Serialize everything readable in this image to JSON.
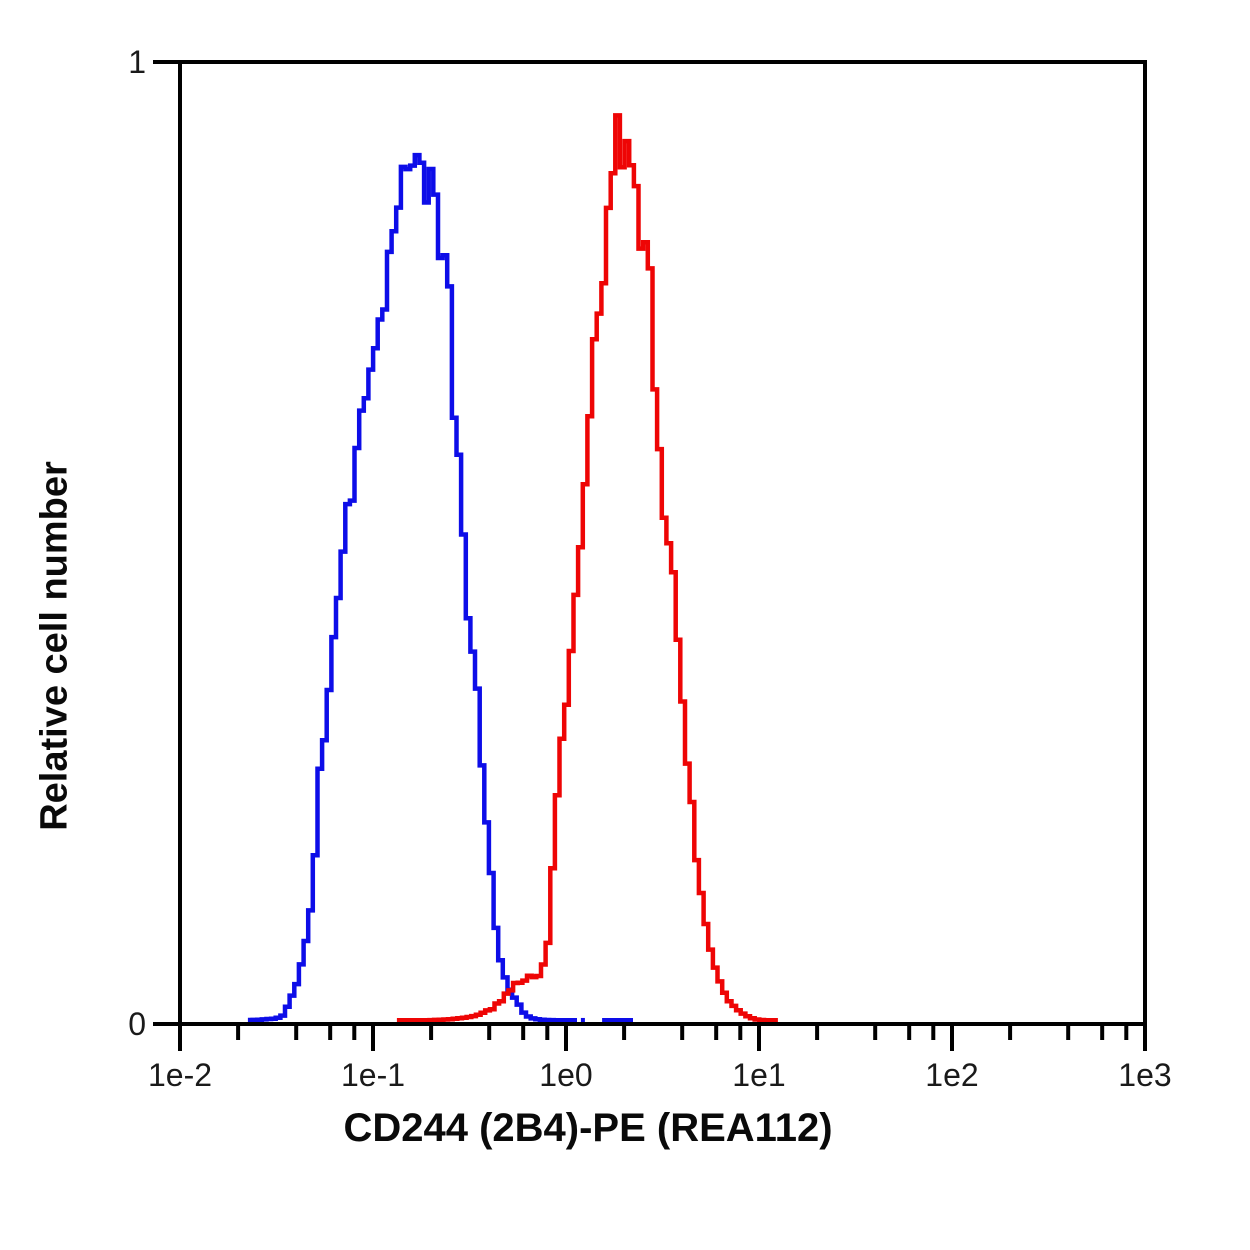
{
  "figure": {
    "background": "#ffffff",
    "x_title": "CD244 (2B4)-PE (REA112)",
    "y_title": "Relative cell number",
    "axis_color": "#000000",
    "tick_label_color": "#1a1a1a"
  },
  "chart_data": {
    "type": "line",
    "subtype": "flow-cytometry-step-histogram-overlay",
    "title": "",
    "xlabel": "CD244 (2B4)-PE (REA112)",
    "ylabel": "Relative cell number",
    "x_axis": {
      "scale": "log10",
      "range_log10": [
        -2,
        3
      ],
      "major_ticks": [
        {
          "log10": -2,
          "label": "1e-2"
        },
        {
          "log10": -1,
          "label": "1e-1"
        },
        {
          "log10": 0,
          "label": "1e0"
        },
        {
          "log10": 1,
          "label": "1e1"
        },
        {
          "log10": 2,
          "label": "1e2"
        },
        {
          "log10": 3,
          "label": "1e3"
        }
      ],
      "minor_tick_multiples": [
        2,
        4,
        6,
        8
      ]
    },
    "y_axis": {
      "range": [
        0,
        1
      ],
      "ticks": [
        {
          "value": 0,
          "label": "0"
        },
        {
          "value": 1,
          "label": "1"
        }
      ]
    },
    "grid": false,
    "legend": false,
    "bin_width_decades": 0.024,
    "series": [
      {
        "name": "blue-control-histogram",
        "color": "#0d0de8",
        "peak_x": 0.165,
        "peak_value": 0.9,
        "segments_log10_value": [
          [
            [
              -1.648,
              0.004
            ],
            [
              -1.55,
              0.005
            ],
            [
              -1.466,
              0.009
            ],
            [
              -1.43,
              0.022
            ],
            [
              -1.378,
              0.057
            ],
            [
              -1.345,
              0.09
            ],
            [
              -1.316,
              0.127
            ],
            [
              -1.285,
              0.231
            ],
            [
              -1.238,
              0.335
            ],
            [
              -1.171,
              0.46
            ],
            [
              -1.104,
              0.565
            ],
            [
              -1.016,
              0.669
            ],
            [
              -0.938,
              0.752
            ],
            [
              -0.886,
              0.835
            ],
            [
              -0.845,
              0.877
            ],
            [
              -0.785,
              0.9
            ],
            [
              -0.73,
              0.885
            ],
            [
              -0.689,
              0.868
            ],
            [
              -0.64,
              0.8
            ],
            [
              -0.601,
              0.752
            ],
            [
              -0.586,
              0.669
            ],
            [
              -0.549,
              0.565
            ],
            [
              -0.523,
              0.46
            ],
            [
              -0.461,
              0.356
            ],
            [
              -0.446,
              0.294
            ],
            [
              -0.394,
              0.169
            ],
            [
              -0.355,
              0.085
            ],
            [
              -0.288,
              0.036
            ],
            [
              -0.22,
              0.012
            ],
            [
              -0.15,
              0.005
            ],
            [
              -0.05,
              0.004
            ],
            [
              0.057,
              0.004
            ]
          ],
          [
            [
              0.077,
              0.004
            ],
            [
              0.098,
              0.004
            ]
          ],
          [
            [
              0.187,
              0.004
            ],
            [
              0.347,
              0.004
            ]
          ]
        ]
      },
      {
        "name": "red-stained-histogram",
        "color": "#ee0505",
        "peak_x": 1.93,
        "peak_value": 0.925,
        "segments_log10_value": [
          [
            [
              -0.876,
              0.003
            ],
            [
              -0.7,
              0.004
            ],
            [
              -0.55,
              0.006
            ],
            [
              -0.45,
              0.01
            ],
            [
              -0.35,
              0.022
            ],
            [
              -0.288,
              0.036
            ],
            [
              -0.2,
              0.046
            ],
            [
              -0.124,
              0.057
            ],
            [
              -0.098,
              0.075
            ],
            [
              -0.073,
              0.148
            ],
            [
              -0.041,
              0.252
            ],
            [
              0.01,
              0.356
            ],
            [
              0.057,
              0.46
            ],
            [
              0.099,
              0.565
            ],
            [
              0.135,
              0.669
            ],
            [
              0.191,
              0.752
            ],
            [
              0.214,
              0.835
            ],
            [
              0.232,
              0.877
            ],
            [
              0.259,
              0.919
            ],
            [
              0.285,
              0.925
            ],
            [
              0.302,
              0.884
            ],
            [
              0.315,
              0.895
            ],
            [
              0.332,
              0.887
            ],
            [
              0.356,
              0.865
            ],
            [
              0.377,
              0.825
            ],
            [
              0.39,
              0.794
            ],
            [
              0.42,
              0.792
            ],
            [
              0.435,
              0.78
            ],
            [
              0.453,
              0.686
            ],
            [
              0.464,
              0.617
            ],
            [
              0.49,
              0.57
            ],
            [
              0.53,
              0.5
            ],
            [
              0.565,
              0.455
            ],
            [
              0.585,
              0.385
            ],
            [
              0.63,
              0.273
            ],
            [
              0.679,
              0.169
            ],
            [
              0.74,
              0.085
            ],
            [
              0.804,
              0.044
            ],
            [
              0.851,
              0.023
            ],
            [
              0.902,
              0.013
            ],
            [
              0.965,
              0.006
            ],
            [
              1.04,
              0.004
            ],
            [
              1.098,
              0.004
            ]
          ]
        ]
      }
    ]
  }
}
